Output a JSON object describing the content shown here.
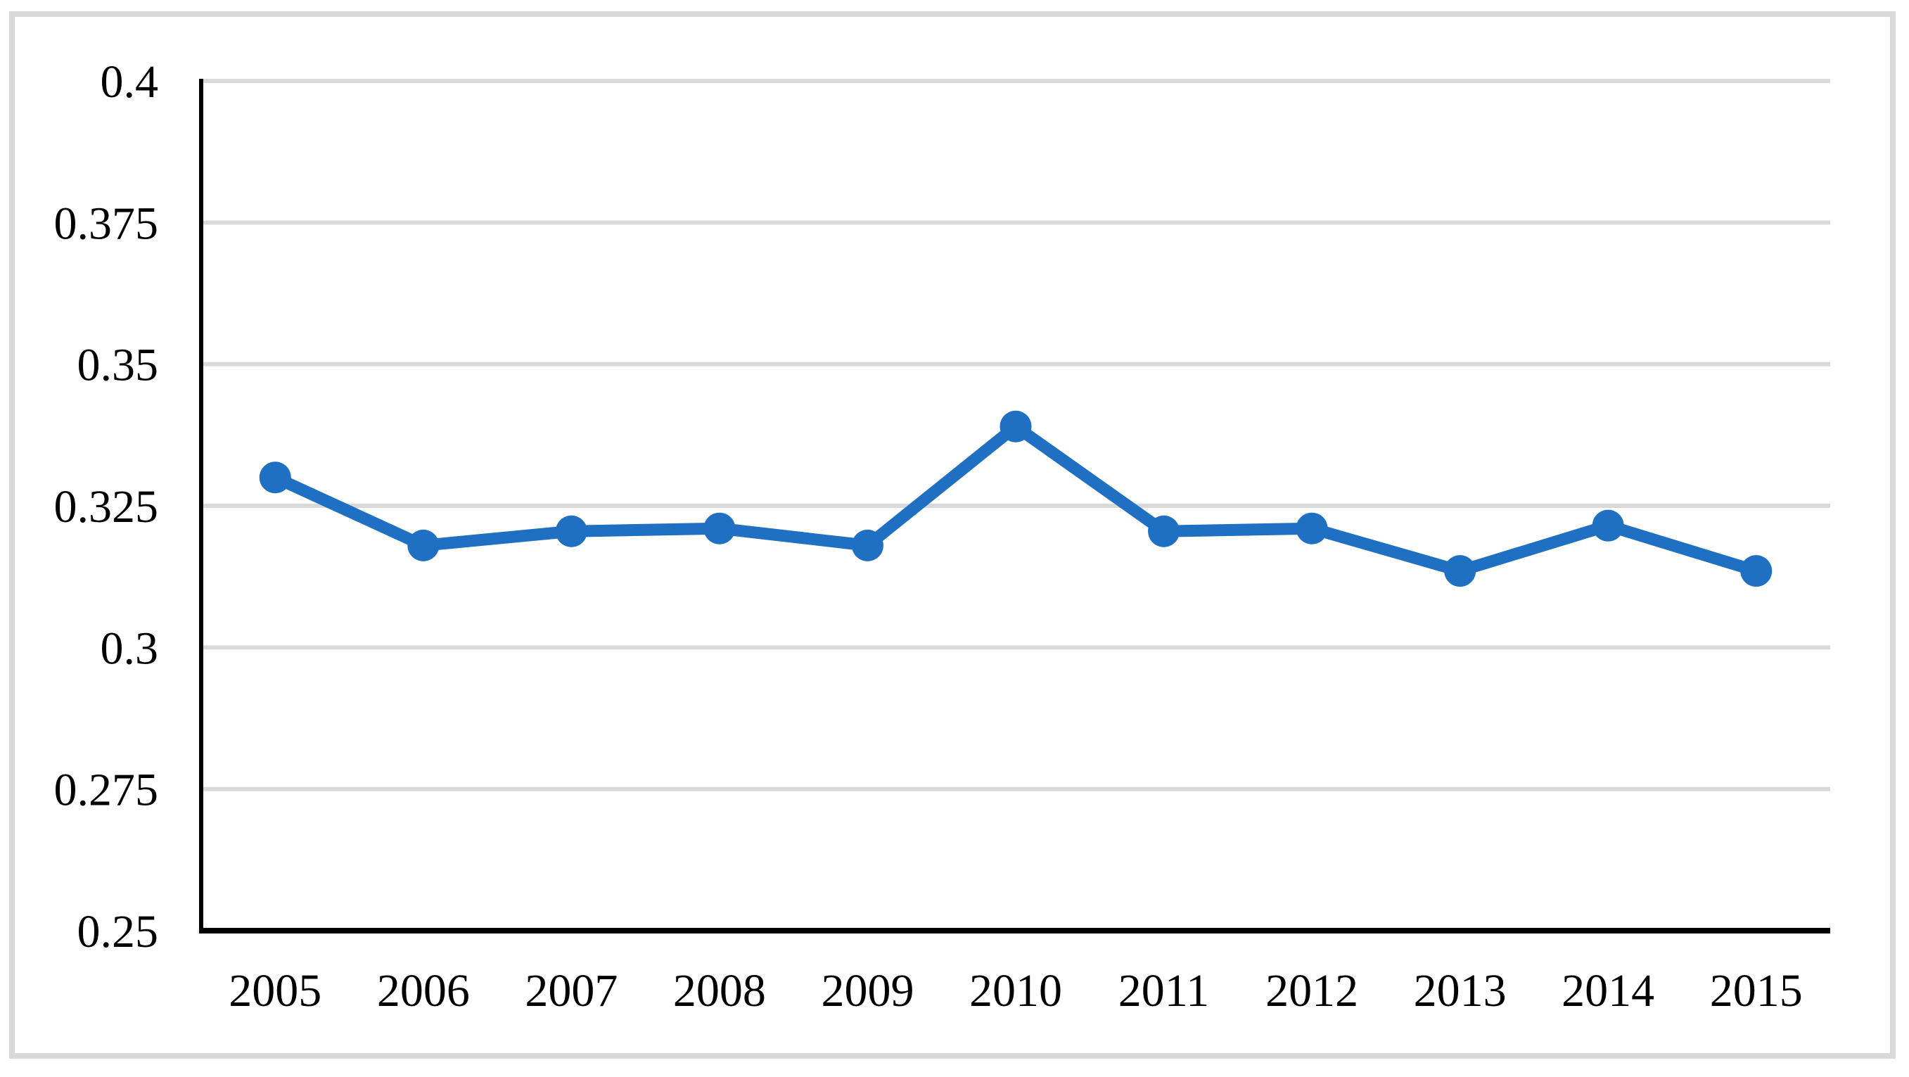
{
  "figure": {
    "background_color": "#FFFFFF",
    "border_color": "#D9D9D9"
  },
  "chart_data": {
    "type": "line",
    "categories": [
      "2005",
      "2006",
      "2007",
      "2008",
      "2009",
      "2010",
      "2011",
      "2012",
      "2013",
      "2014",
      "2015"
    ],
    "values": [
      0.33,
      0.318,
      0.3205,
      0.321,
      0.318,
      0.339,
      0.3205,
      0.321,
      0.3135,
      0.3215,
      0.3135
    ],
    "ylim": [
      0.25,
      0.4
    ],
    "ytick_interval": 0.025,
    "ytick_labels": [
      "0.4",
      "0.375",
      "0.35",
      "0.325",
      "0.3",
      "0.275",
      "0.25"
    ],
    "grid": true,
    "legend": false,
    "marker": "circle",
    "series_color": "#1F6FC3",
    "gridline_color": "#D9D9D9",
    "axis_color": "#000000",
    "tick_label_color": "#000000"
  }
}
